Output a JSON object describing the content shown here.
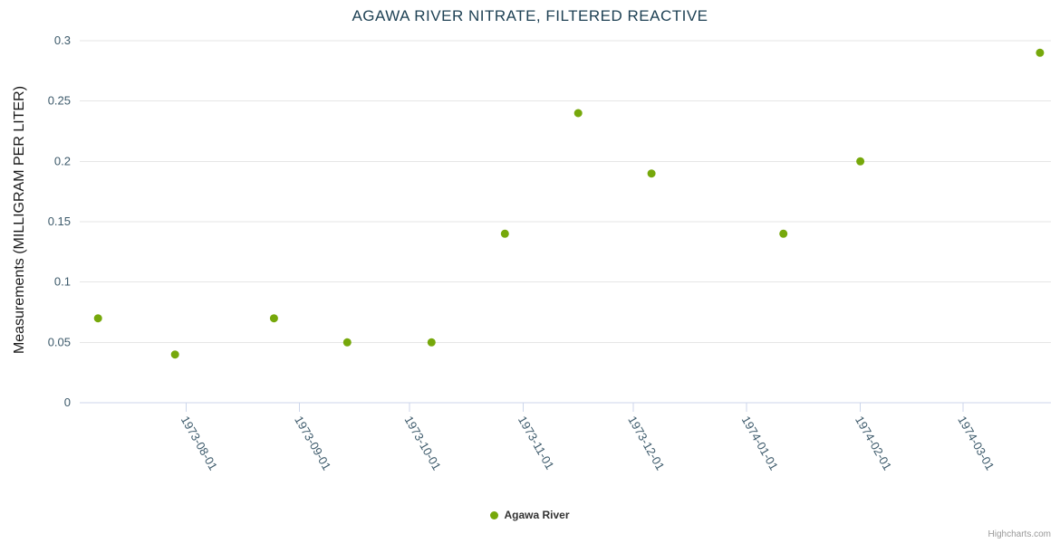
{
  "chart_data": {
    "type": "scatter",
    "title": "AGAWA RIVER NITRATE, FILTERED REACTIVE",
    "xlabel": "",
    "ylabel": "Measurements (MILLIGRAM PER LITER)",
    "series": [
      {
        "name": "Agawa River",
        "color": "#76a80b",
        "points": [
          {
            "x": "1973-07-08",
            "y": 0.07
          },
          {
            "x": "1973-07-29",
            "y": 0.04
          },
          {
            "x": "1973-08-25",
            "y": 0.07
          },
          {
            "x": "1973-09-14",
            "y": 0.05
          },
          {
            "x": "1973-10-07",
            "y": 0.05
          },
          {
            "x": "1973-10-27",
            "y": 0.14
          },
          {
            "x": "1973-11-16",
            "y": 0.24
          },
          {
            "x": "1973-12-06",
            "y": 0.19
          },
          {
            "x": "1974-01-11",
            "y": 0.14
          },
          {
            "x": "1974-02-01",
            "y": 0.2
          },
          {
            "x": "1974-03-22",
            "y": 0.29
          }
        ]
      }
    ],
    "x_axis": {
      "type": "datetime",
      "min": "1973-07-03",
      "max": "1974-03-25",
      "ticks": [
        "1973-08-01",
        "1973-09-01",
        "1973-10-01",
        "1973-11-01",
        "1973-12-01",
        "1974-01-01",
        "1974-02-01",
        "1974-03-01"
      ],
      "label_rotation_deg": 60,
      "grid": false
    },
    "y_axis": {
      "min": 0,
      "max": 0.3,
      "ticks": [
        0,
        0.05,
        0.1,
        0.15,
        0.2,
        0.25,
        0.3
      ],
      "grid": true
    },
    "legend": {
      "position": "bottom-center",
      "items": [
        "Agawa River"
      ]
    },
    "credits": "Highcharts.com"
  },
  "colors": {
    "accent": "#76a80b",
    "title": "#1e4154",
    "axis_text": "#3d5a6b",
    "y_title_text": "#1a1a1a",
    "grid": "#e6e6e6",
    "axis_line": "#ccd6eb",
    "legend_text": "#333333",
    "credits_text": "#999999",
    "background": "#ffffff"
  }
}
